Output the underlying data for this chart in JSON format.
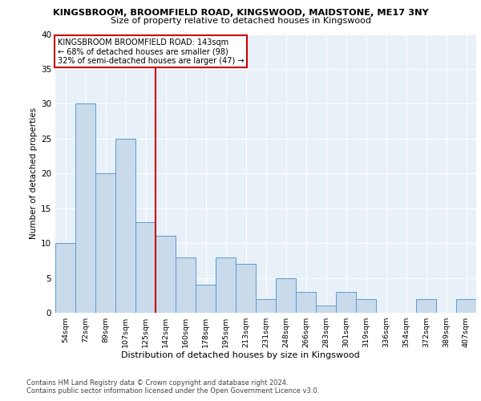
{
  "title1": "KINGSBROOM, BROOMFIELD ROAD, KINGSWOOD, MAIDSTONE, ME17 3NY",
  "title2": "Size of property relative to detached houses in Kingswood",
  "xlabel": "Distribution of detached houses by size in Kingswood",
  "ylabel": "Number of detached properties",
  "categories": [
    "54sqm",
    "72sqm",
    "89sqm",
    "107sqm",
    "125sqm",
    "142sqm",
    "160sqm",
    "178sqm",
    "195sqm",
    "213sqm",
    "231sqm",
    "248sqm",
    "266sqm",
    "283sqm",
    "301sqm",
    "319sqm",
    "336sqm",
    "354sqm",
    "372sqm",
    "389sqm",
    "407sqm"
  ],
  "values": [
    10,
    30,
    20,
    25,
    13,
    11,
    8,
    4,
    8,
    7,
    2,
    5,
    3,
    1,
    3,
    2,
    0,
    0,
    2,
    0,
    2
  ],
  "bar_color": "#c9daea",
  "bar_edge_color": "#5b9bd5",
  "annotation_line1": "KINGSBROOM BROOMFIELD ROAD: 143sqm",
  "annotation_line2": "← 68% of detached houses are smaller (98)",
  "annotation_line3": "32% of semi-detached houses are larger (47) →",
  "annotation_box_color": "#ffffff",
  "annotation_box_edge": "#cc0000",
  "vline_color": "#cc0000",
  "ylim": [
    0,
    40
  ],
  "yticks": [
    0,
    5,
    10,
    15,
    20,
    25,
    30,
    35,
    40
  ],
  "footer1": "Contains HM Land Registry data © Crown copyright and database right 2024.",
  "footer2": "Contains public sector information licensed under the Open Government Licence v3.0.",
  "plot_bg": "#e8f0f8"
}
